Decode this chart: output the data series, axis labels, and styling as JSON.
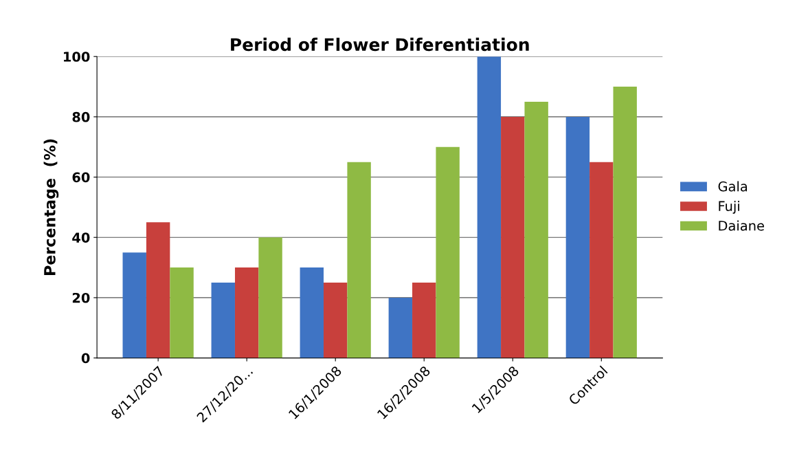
{
  "chart_data": {
    "type": "bar",
    "title": "Period of Flower Diferentiation",
    "ylabel": "Percentage  (%)",
    "categories": [
      "8/11/2007",
      "27/12/20...",
      "16/1/2008",
      "16/2/2008",
      "1/5/2008",
      "Control"
    ],
    "series": [
      {
        "name": "Gala",
        "color": "#3f74c4",
        "values": [
          35,
          25,
          30,
          20,
          100,
          80
        ]
      },
      {
        "name": "Fuji",
        "color": "#c8403c",
        "values": [
          45,
          30,
          25,
          25,
          80,
          65
        ]
      },
      {
        "name": "Daiane",
        "color": "#8fba44",
        "values": [
          30,
          40,
          65,
          70,
          85,
          90
        ]
      }
    ],
    "ylim": [
      0,
      100
    ],
    "yticks": [
      0,
      20,
      40,
      60,
      80,
      100
    ],
    "grid": "y",
    "legend": "right"
  }
}
